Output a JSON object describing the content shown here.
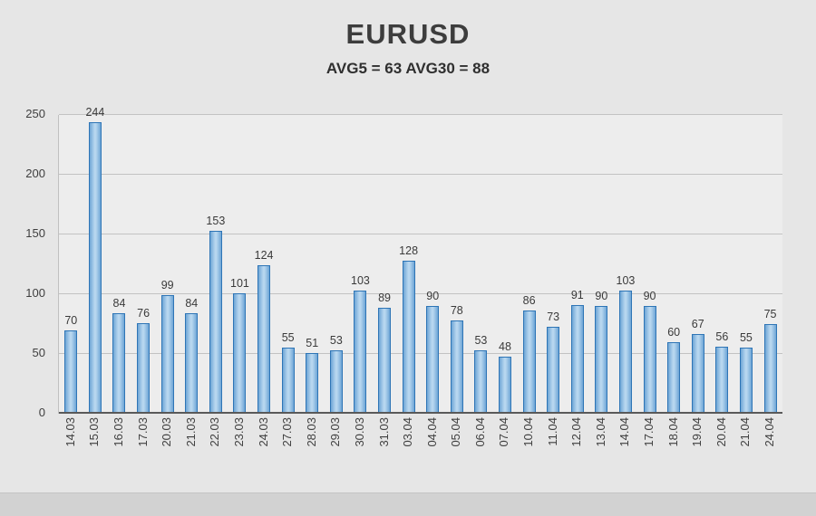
{
  "chart_data": {
    "type": "bar",
    "title": "EURUSD",
    "subtitle": "AVG5 = 63 AVG30 = 88",
    "avg5": 63,
    "avg30": 88,
    "categories": [
      "14.03",
      "15.03",
      "16.03",
      "17.03",
      "20.03",
      "21.03",
      "22.03",
      "23.03",
      "24.03",
      "27.03",
      "28.03",
      "29.03",
      "30.03",
      "31.03",
      "03.04",
      "04.04",
      "05.04",
      "06.04",
      "07.04",
      "10.04",
      "11.04",
      "12.04",
      "13.04",
      "14.04",
      "17.04",
      "18.04",
      "19.04",
      "20.04",
      "21.04",
      "24.04"
    ],
    "values": [
      70,
      244,
      84,
      76,
      99,
      84,
      153,
      101,
      124,
      55,
      51,
      53,
      103,
      89,
      128,
      90,
      78,
      53,
      48,
      86,
      73,
      91,
      90,
      103,
      90,
      60,
      67,
      56,
      55,
      75
    ],
    "xlabel": "",
    "ylabel": "",
    "ylim": [
      0,
      250
    ],
    "yticks": [
      0,
      50,
      100,
      150,
      200,
      250
    ],
    "grid": true,
    "legend": "none",
    "colors": {
      "bar_fill": "#a9cdea",
      "bar_border": "#2e75b6",
      "background": "#e6e6e6",
      "plot_background": "#ededed",
      "gridline": "#c2c2c2",
      "axis_line": "#595959",
      "text": "#3d3d3d"
    }
  }
}
